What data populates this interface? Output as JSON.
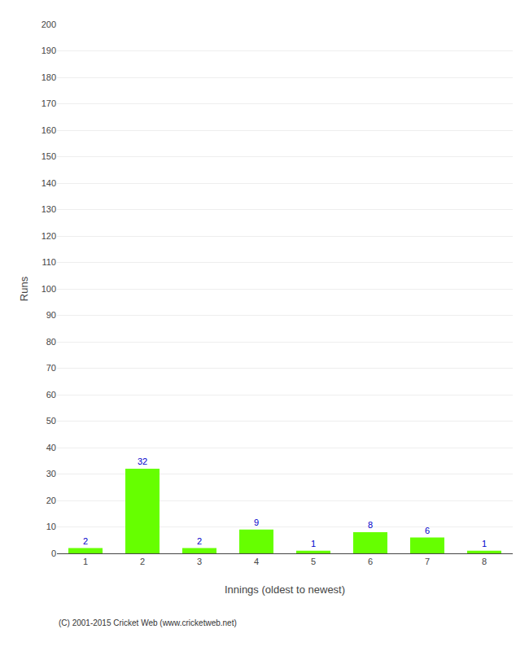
{
  "chart_data": {
    "type": "bar",
    "categories": [
      "1",
      "2",
      "3",
      "4",
      "5",
      "6",
      "7",
      "8"
    ],
    "values": [
      2,
      32,
      2,
      9,
      1,
      8,
      6,
      1
    ],
    "color": "#66ff00",
    "xlabel": "Innings (oldest to newest)",
    "ylabel": "Runs",
    "ylim": [
      0,
      200
    ],
    "yticks": [
      0,
      10,
      20,
      30,
      40,
      50,
      60,
      70,
      80,
      90,
      100,
      110,
      120,
      130,
      140,
      150,
      160,
      170,
      180,
      190,
      200
    ],
    "grid": true,
    "data_labels": true,
    "annotations": [
      "(C) 2001-2015 Cricket Web (www.cricketweb.net)"
    ]
  }
}
